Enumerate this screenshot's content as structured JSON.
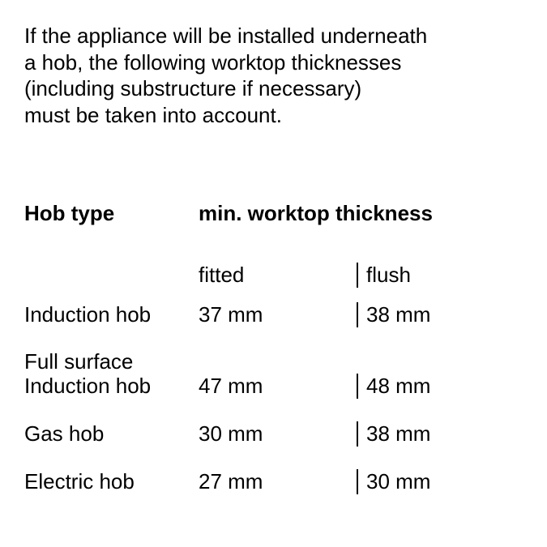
{
  "intro": {
    "line1": "If the appliance will be installed underneath",
    "line2": "a hob, the following worktop thicknesses",
    "line3": "(including substructure if necessary)",
    "line4": "must be taken into account."
  },
  "headers": {
    "type": "Hob type",
    "thickness": "min. worktop thickness",
    "fitted": "fitted",
    "flush": "flush"
  },
  "rows": [
    {
      "label": "Induction hob",
      "multiline": false,
      "fitted": "37 mm",
      "flush": "38 mm"
    },
    {
      "label": "Full surface\nInduction hob",
      "multiline": true,
      "fitted": "47 mm",
      "flush": "48 mm"
    },
    {
      "label": "Gas hob",
      "multiline": false,
      "fitted": "30 mm",
      "flush": "38 mm"
    },
    {
      "label": "Electric hob",
      "multiline": false,
      "fitted": "27 mm",
      "flush": "30 mm"
    }
  ],
  "colors": {
    "text": "#000000",
    "background": "#ffffff",
    "border": "#000000"
  },
  "typography": {
    "body_fontsize": 26,
    "header_weight": "bold"
  }
}
